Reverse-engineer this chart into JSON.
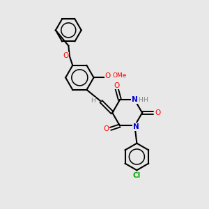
{
  "bg_color": "#e8e8e8",
  "figsize": [
    3.0,
    3.0
  ],
  "dpi": 100,
  "bond_color": "#000000",
  "bond_lw": 1.5,
  "atom_colors": {
    "O": "#ff0000",
    "N": "#0000cc",
    "Cl": "#00aa00",
    "C": "#000000",
    "H": "#808080"
  }
}
